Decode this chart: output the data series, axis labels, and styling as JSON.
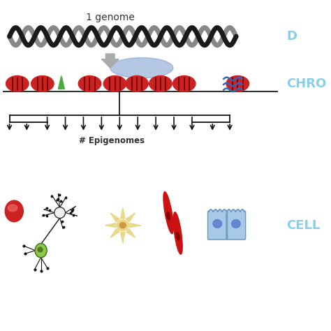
{
  "background_color": "#ffffff",
  "label_dna": "D",
  "label_chromatin": "CHRO",
  "label_cell": "CELL",
  "label_genome": "1 genome",
  "label_epigenomes": "# Epigenomes",
  "label_color": "#87CEEB",
  "dna_color1": "#1a1a1a",
  "dna_color2": "#888888",
  "nucleosome_color": "#cc2222",
  "down_arrow_color": "#aaaaaa",
  "green_arrow_color": "#4aaa44",
  "blue_oval_color": "#7799cc",
  "blue_oval_alpha": 0.55,
  "wave_color": "#3366bb",
  "tree_color": "#111111",
  "neuron_line_color": "#111111",
  "neuron_body_color": "#88cc44",
  "neuron_body2_color": "#aaddaa",
  "muscle_color": "#cc1111",
  "epithelial_color": "#a8c8e8",
  "astrocyte_color": "#e8d888",
  "astrocyte_nucleus": "#cc9944",
  "rbc_color": "#cc2222",
  "rbc_highlight": "#ff6666"
}
